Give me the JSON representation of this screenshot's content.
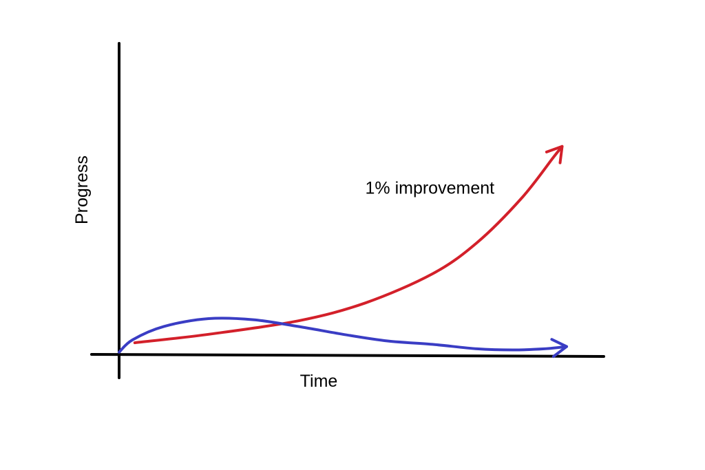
{
  "chart_data": {
    "type": "line",
    "xlabel": "Time",
    "ylabel": "Progress",
    "xlim": [
      0,
      100
    ],
    "ylim": [
      0,
      100
    ],
    "grid": false,
    "series": [
      {
        "color": "#d3202a",
        "arrow": true,
        "x": [
          3.5,
          20,
          40,
          55,
          70,
          80,
          90,
          97,
          99
        ],
        "y": [
          5.2,
          9,
          15,
          23,
          36,
          50,
          70,
          88,
          93
        ]
      },
      {
        "color": "#3a3dc4",
        "arrow": true,
        "x": [
          0,
          3,
          10,
          20,
          30,
          40,
          50,
          60,
          70,
          80,
          88,
          95,
          100
        ],
        "y": [
          1,
          6.5,
          12.5,
          16,
          15.5,
          12.5,
          9,
          6,
          4.5,
          2.5,
          2,
          2.5,
          3.5
        ]
      }
    ],
    "annotations": [
      {
        "text": "1% improvement",
        "x": 55,
        "y": 75
      }
    ]
  }
}
